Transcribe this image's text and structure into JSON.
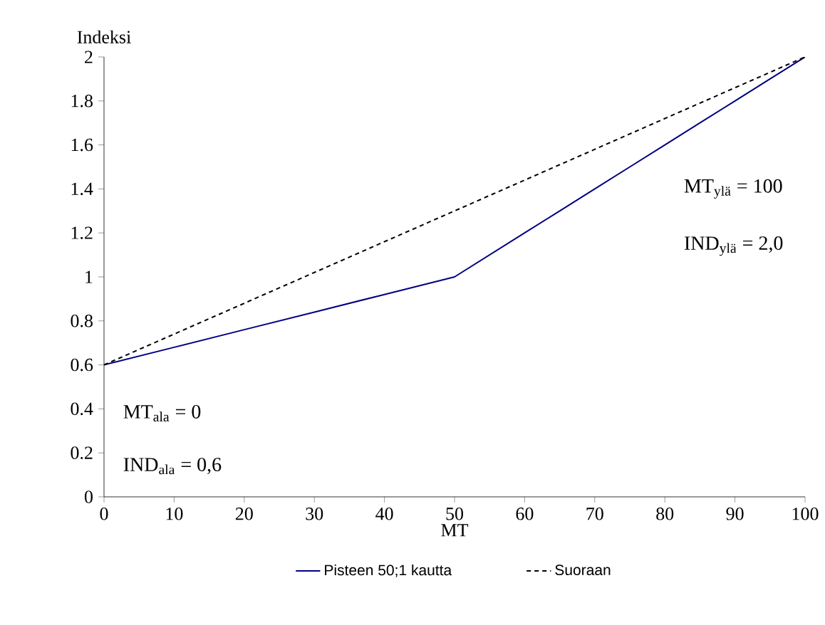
{
  "chart_data": {
    "type": "line",
    "xlabel": "MT",
    "ylabel": "Indeksi",
    "x": [
      0,
      10,
      20,
      30,
      40,
      50,
      55,
      60,
      65,
      70,
      75,
      80,
      85,
      90,
      95,
      100
    ],
    "series": [
      {
        "name": "Pisteen 50;1 kautta",
        "color": "#000080",
        "line_style": "solid",
        "values": [
          0.6,
          0.68,
          0.76,
          0.84,
          0.92,
          1.0,
          1.1,
          1.2,
          1.3,
          1.4,
          1.5,
          1.6,
          1.7,
          1.8,
          1.9,
          2.0
        ]
      },
      {
        "name": "Suoraan",
        "color": "#000000",
        "line_style": "dashed",
        "x": [
          0,
          100
        ],
        "values": [
          0.6,
          2.0
        ]
      }
    ],
    "xlim": [
      0,
      100
    ],
    "ylim": [
      0,
      2
    ],
    "xticks": [
      0,
      10,
      20,
      30,
      40,
      50,
      60,
      70,
      80,
      90,
      100
    ],
    "yticks": [
      0,
      0.2,
      0.4,
      0.6,
      0.8,
      1,
      1.2,
      1.4,
      1.6,
      1.8,
      2
    ],
    "grid": false,
    "legend": "bottom",
    "marker": "none",
    "annotations": [
      "MT$_{ylä}$ = 100",
      "IND$_{ylä}$ = 2,0",
      "MT$_{ala}$ = 0",
      "IND$_{ala}$ = 0,6"
    ]
  }
}
